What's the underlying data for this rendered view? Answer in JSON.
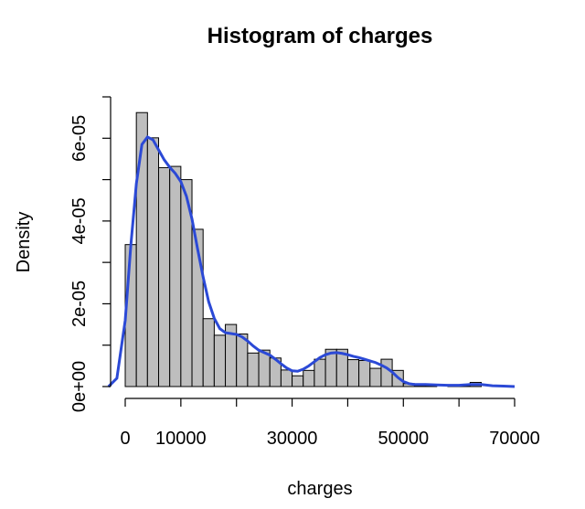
{
  "chart_data": {
    "type": "bar",
    "title": "Histogram of charges",
    "xlabel": "charges",
    "ylabel": "Density",
    "xlim": [
      0,
      70000
    ],
    "ylim": [
      0,
      7e-05
    ],
    "bin_width": 2000,
    "bins": [
      {
        "x0": 0,
        "x1": 2000,
        "density": 3.43e-05
      },
      {
        "x0": 2000,
        "x1": 4000,
        "density": 6.62e-05
      },
      {
        "x0": 4000,
        "x1": 6000,
        "density": 6.01e-05
      },
      {
        "x0": 6000,
        "x1": 8000,
        "density": 5.29e-05
      },
      {
        "x0": 8000,
        "x1": 10000,
        "density": 5.32e-05
      },
      {
        "x0": 10000,
        "x1": 12000,
        "density": 5e-05
      },
      {
        "x0": 12000,
        "x1": 14000,
        "density": 3.8e-05
      },
      {
        "x0": 14000,
        "x1": 16000,
        "density": 1.64e-05
      },
      {
        "x0": 16000,
        "x1": 18000,
        "density": 1.24e-05
      },
      {
        "x0": 18000,
        "x1": 20000,
        "density": 1.5e-05
      },
      {
        "x0": 20000,
        "x1": 22000,
        "density": 1.27e-05
      },
      {
        "x0": 22000,
        "x1": 24000,
        "density": 8.1e-06
      },
      {
        "x0": 24000,
        "x1": 26000,
        "density": 8.8e-06
      },
      {
        "x0": 26000,
        "x1": 28000,
        "density": 6.9e-06
      },
      {
        "x0": 28000,
        "x1": 30000,
        "density": 4e-06
      },
      {
        "x0": 30000,
        "x1": 32000,
        "density": 2.6e-06
      },
      {
        "x0": 32000,
        "x1": 34000,
        "density": 3.9e-06
      },
      {
        "x0": 34000,
        "x1": 36000,
        "density": 6.6e-06
      },
      {
        "x0": 36000,
        "x1": 38000,
        "density": 9e-06
      },
      {
        "x0": 38000,
        "x1": 40000,
        "density": 9e-06
      },
      {
        "x0": 40000,
        "x1": 42000,
        "density": 6.5e-06
      },
      {
        "x0": 42000,
        "x1": 44000,
        "density": 6.3e-06
      },
      {
        "x0": 44000,
        "x1": 46000,
        "density": 4.4e-06
      },
      {
        "x0": 46000,
        "x1": 48000,
        "density": 6.6e-06
      },
      {
        "x0": 48000,
        "x1": 50000,
        "density": 3.9e-06
      },
      {
        "x0": 50000,
        "x1": 52000,
        "density": 7e-07
      },
      {
        "x0": 52000,
        "x1": 54000,
        "density": 1e-07
      },
      {
        "x0": 54000,
        "x1": 56000,
        "density": 1e-07
      },
      {
        "x0": 56000,
        "x1": 58000,
        "density": 0.0
      },
      {
        "x0": 58000,
        "x1": 60000,
        "density": 3e-07
      },
      {
        "x0": 60000,
        "x1": 62000,
        "density": 1e-07
      },
      {
        "x0": 62000,
        "x1": 64000,
        "density": 1e-06
      },
      {
        "x0": 64000,
        "x1": 66000,
        "density": 0.0
      },
      {
        "x0": 66000,
        "x1": 68000,
        "density": 0.0
      },
      {
        "x0": 68000,
        "x1": 70000,
        "density": 0.0
      }
    ],
    "series": [
      {
        "type": "line",
        "color": "#2b49d6",
        "x": [
          -3000,
          -1500,
          0,
          1000,
          2000,
          3000,
          4000,
          5000,
          6000,
          7000,
          8000,
          9000,
          10000,
          11000,
          12000,
          13000,
          14000,
          15000,
          16000,
          17000,
          18000,
          19000,
          20000,
          21000,
          22000,
          23000,
          24000,
          25000,
          26000,
          27000,
          28000,
          29000,
          30000,
          31000,
          32000,
          33000,
          34000,
          35000,
          36000,
          37000,
          38000,
          39000,
          40000,
          41000,
          42000,
          43000,
          44000,
          45000,
          46000,
          47000,
          48000,
          49000,
          50000,
          51000,
          52000,
          54000,
          56000,
          58000,
          60000,
          62000,
          64000,
          66000,
          68000,
          70000
        ],
        "y": [
          0.0,
          2e-06,
          1.6e-05,
          3.4e-05,
          4.9e-05,
          5.85e-05,
          6.03e-05,
          5.96e-05,
          5.72e-05,
          5.48e-05,
          5.3e-05,
          5.15e-05,
          4.95e-05,
          4.6e-05,
          4.05e-05,
          3.33e-05,
          2.65e-05,
          2.05e-05,
          1.65e-05,
          1.4e-05,
          1.3e-05,
          1.28e-05,
          1.26e-05,
          1.2e-05,
          1.1e-05,
          9.8e-06,
          8.8e-06,
          8.2e-06,
          7.6e-06,
          6.6e-06,
          5.5e-06,
          4.5e-06,
          3.8e-06,
          3.7e-06,
          4.2e-06,
          5e-06,
          6e-06,
          7e-06,
          7.7e-06,
          8.1e-06,
          8.2e-06,
          8e-06,
          7.7e-06,
          7.3e-06,
          7e-06,
          6.6e-06,
          6.2e-06,
          5.8e-06,
          5.2e-06,
          4.5e-06,
          3.5e-06,
          2.2e-06,
          1.2e-06,
          7e-07,
          5e-07,
          5e-07,
          4e-07,
          3e-07,
          3e-07,
          5e-07,
          5e-07,
          2e-07,
          1e-07,
          0.0
        ]
      }
    ],
    "x_ticks": [
      0,
      10000,
      20000,
      30000,
      40000,
      50000,
      60000,
      70000
    ],
    "x_tick_labels": [
      "0",
      "10000",
      "",
      "30000",
      "",
      "50000",
      "",
      "70000"
    ],
    "y_ticks": [
      0,
      1e-05,
      2e-05,
      3e-05,
      4e-05,
      5e-05,
      6e-05,
      7e-05
    ],
    "y_tick_labels": [
      "0e+00",
      "",
      "2e-05",
      "",
      "4e-05",
      "",
      "6e-05",
      ""
    ],
    "grid": false,
    "legend": "none"
  }
}
